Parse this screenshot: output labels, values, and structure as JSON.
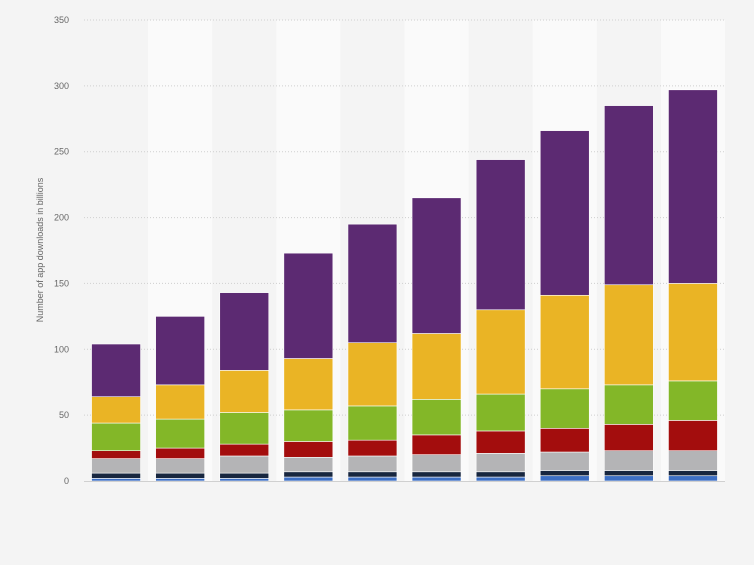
{
  "chart_data": {
    "type": "bar",
    "stacked": true,
    "title": "",
    "xlabel": "",
    "ylabel": "Number of app downloads in billions",
    "ylim": [
      0,
      350
    ],
    "yticks": [
      0,
      50,
      100,
      150,
      200,
      250,
      300,
      350
    ],
    "grid": "horizontal dotted",
    "legend": "none",
    "categories": [
      "",
      "",
      "",
      "",
      "",
      "",
      "",
      "",
      "",
      ""
    ],
    "series": [
      {
        "color": "#3d6fc4",
        "values": [
          2,
          2,
          2,
          3,
          3,
          3,
          3,
          4,
          4,
          4
        ]
      },
      {
        "color": "#17263f",
        "values": [
          4,
          4,
          4,
          4,
          4,
          4,
          4,
          4,
          4,
          4
        ]
      },
      {
        "color": "#b4b4b6",
        "values": [
          11,
          11,
          13,
          11,
          12,
          13,
          14,
          14,
          15,
          15
        ]
      },
      {
        "color": "#a30d0d",
        "values": [
          6,
          8,
          9,
          12,
          12,
          15,
          17,
          18,
          20,
          23
        ]
      },
      {
        "color": "#83b728",
        "values": [
          21,
          22,
          24,
          24,
          26,
          27,
          28,
          30,
          30,
          30
        ]
      },
      {
        "color": "#eab425",
        "values": [
          20,
          26,
          32,
          39,
          48,
          50,
          64,
          71,
          76,
          74
        ]
      },
      {
        "color": "#5c2a72",
        "values": [
          40,
          52,
          59,
          80,
          90,
          103,
          114,
          125,
          136,
          147
        ]
      }
    ]
  }
}
